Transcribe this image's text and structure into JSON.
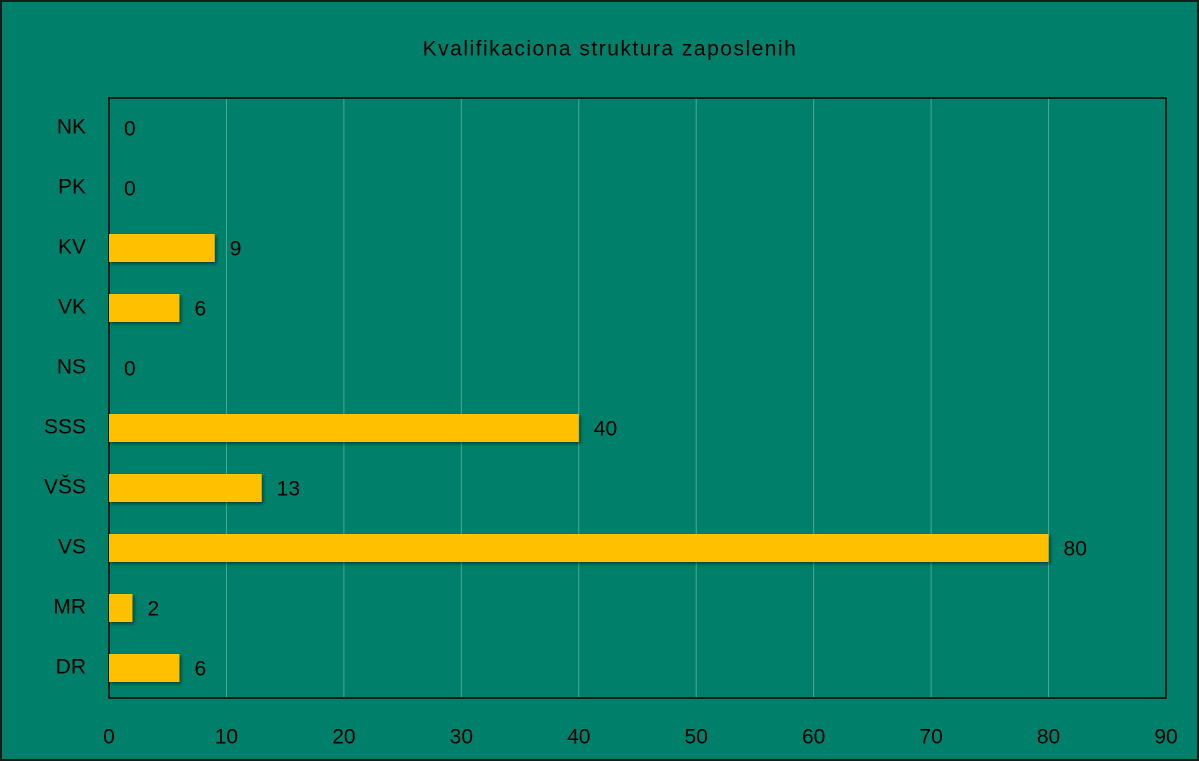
{
  "chart_data": {
    "type": "barh",
    "title": "Kvalifikaciona struktura zaposlenih",
    "categories": [
      "NK",
      "PK",
      "KV",
      "VK",
      "NS",
      "SSS",
      "VŠS",
      "VS",
      "MR",
      "DR"
    ],
    "values": [
      0,
      0,
      9,
      6,
      0,
      40,
      13,
      80,
      2,
      6
    ],
    "color": "#ffc000",
    "xlim": [
      0,
      90
    ],
    "xticks": [
      0,
      10,
      20,
      30,
      40,
      50,
      60,
      70,
      80,
      90
    ],
    "grid": true
  }
}
